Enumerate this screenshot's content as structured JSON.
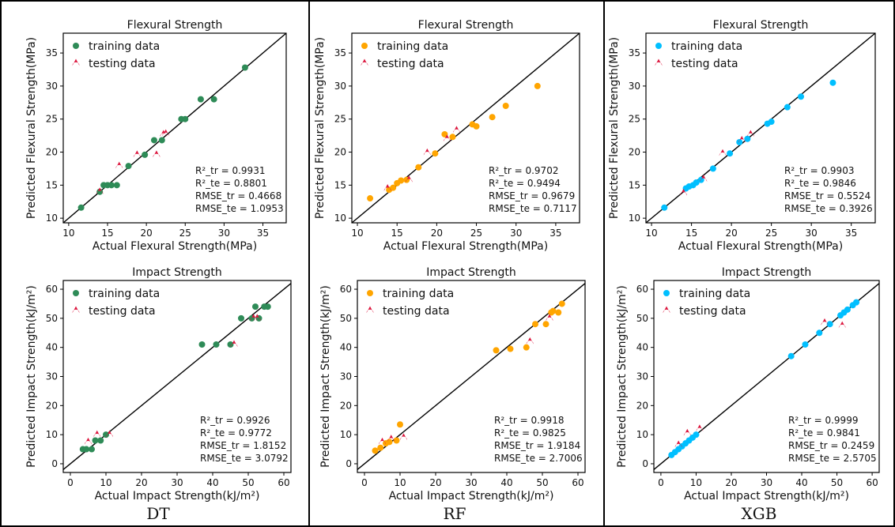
{
  "models": [
    "DT",
    "RF",
    "XGB"
  ],
  "colors": {
    "testing": "#dc143c",
    "DT": "#2e8b57",
    "RF": "#ffa500",
    "XGB": "#00bfff"
  },
  "legend": {
    "training": "training data",
    "testing": "testing data"
  },
  "chart_data": [
    {
      "type": "scatter",
      "model": "DT",
      "metric": "flexural",
      "title": "Flexural Strength",
      "xlabel": "Actual Flexural Strength(MPa)",
      "ylabel": "Predicted Flexural Strength(MPa)",
      "xlim": [
        9.3,
        38
      ],
      "ylim": [
        9.3,
        38
      ],
      "xticks": [
        10,
        15,
        20,
        25,
        30,
        35
      ],
      "yticks": [
        10,
        15,
        20,
        25,
        30,
        35
      ],
      "annotations": [
        "R²_tr = 0.9931",
        "R²_te = 0.8801",
        "RMSE_tr = 0.4668",
        "RMSE_te = 1.0953"
      ],
      "series": [
        {
          "name": "training data",
          "role": "training",
          "points": [
            [
              11.6,
              11.6
            ],
            [
              14.0,
              14.0
            ],
            [
              14.5,
              15.0
            ],
            [
              15.0,
              15.0
            ],
            [
              15.5,
              15.0
            ],
            [
              16.2,
              15.0
            ],
            [
              17.7,
              17.9
            ],
            [
              19.8,
              19.6
            ],
            [
              21.0,
              21.8
            ],
            [
              22.0,
              21.8
            ],
            [
              24.5,
              25.0
            ],
            [
              25.0,
              25.0
            ],
            [
              27.0,
              28.0
            ],
            [
              28.7,
              28.0
            ],
            [
              32.7,
              32.8
            ]
          ]
        },
        {
          "name": "testing data",
          "role": "testing",
          "points": [
            [
              14.0,
              14.0
            ],
            [
              16.5,
              17.9
            ],
            [
              18.8,
              19.6
            ],
            [
              21.3,
              19.6
            ],
            [
              22.2,
              22.7
            ],
            [
              22.5,
              22.8
            ]
          ]
        }
      ]
    },
    {
      "type": "scatter",
      "model": "RF",
      "metric": "flexural",
      "title": "Flexural Strength",
      "xlabel": "Actual Flexural Strength(MPa)",
      "ylabel": "Predicted Flexural Strength(MPa)",
      "xlim": [
        9.3,
        38
      ],
      "ylim": [
        9.3,
        38
      ],
      "xticks": [
        10,
        15,
        20,
        25,
        30,
        35
      ],
      "yticks": [
        10,
        15,
        20,
        25,
        30,
        35
      ],
      "annotations": [
        "R²_tr = 0.9702",
        "R²_te = 0.9494",
        "RMSE_tr = 0.9679",
        "RMSE_te = 0.7117"
      ],
      "series": [
        {
          "name": "training data",
          "role": "training",
          "points": [
            [
              11.6,
              13.0
            ],
            [
              14.0,
              14.3
            ],
            [
              14.5,
              14.6
            ],
            [
              15.0,
              15.3
            ],
            [
              15.5,
              15.7
            ],
            [
              16.2,
              15.8
            ],
            [
              17.7,
              17.7
            ],
            [
              19.8,
              19.8
            ],
            [
              21.0,
              22.7
            ],
            [
              22.0,
              22.3
            ],
            [
              24.5,
              24.2
            ],
            [
              25.0,
              23.9
            ],
            [
              27.0,
              25.3
            ],
            [
              28.7,
              27.0
            ],
            [
              32.7,
              30.0
            ]
          ]
        },
        {
          "name": "testing data",
          "role": "testing",
          "points": [
            [
              13.8,
              14.5
            ],
            [
              16.5,
              15.8
            ],
            [
              18.8,
              19.9
            ],
            [
              21.3,
              22.0
            ],
            [
              22.5,
              23.3
            ]
          ]
        }
      ]
    },
    {
      "type": "scatter",
      "model": "XGB",
      "metric": "flexural",
      "title": "Flexural Strength",
      "xlabel": "Actual Flexural Strength(MPa)",
      "ylabel": "Predicted Flexural Strength(MPa)",
      "xlim": [
        9.3,
        38
      ],
      "ylim": [
        9.3,
        38
      ],
      "xticks": [
        10,
        15,
        20,
        25,
        30,
        35
      ],
      "yticks": [
        10,
        15,
        20,
        25,
        30,
        35
      ],
      "annotations": [
        "R²_tr = 0.9903",
        "R²_te = 0.9846",
        "RMSE_tr = 0.5524",
        "RMSE_te = 0.3926"
      ],
      "series": [
        {
          "name": "training data",
          "role": "training",
          "points": [
            [
              11.6,
              11.6
            ],
            [
              14.3,
              14.5
            ],
            [
              14.7,
              14.8
            ],
            [
              15.2,
              15.0
            ],
            [
              15.6,
              15.4
            ],
            [
              16.2,
              15.8
            ],
            [
              17.7,
              17.5
            ],
            [
              19.8,
              19.8
            ],
            [
              21.0,
              21.5
            ],
            [
              22.0,
              22.0
            ],
            [
              24.5,
              24.3
            ],
            [
              25.0,
              24.6
            ],
            [
              27.0,
              26.8
            ],
            [
              28.7,
              28.4
            ],
            [
              32.7,
              30.5
            ]
          ]
        },
        {
          "name": "testing data",
          "role": "testing",
          "points": [
            [
              14.0,
              13.8
            ],
            [
              16.5,
              15.9
            ],
            [
              18.9,
              19.8
            ],
            [
              21.3,
              21.8
            ],
            [
              22.4,
              22.7
            ]
          ]
        }
      ]
    },
    {
      "type": "scatter",
      "model": "DT",
      "metric": "impact",
      "title": "Impact Strength",
      "xlabel": "Actual Impact Strength(kJ/m²)",
      "ylabel": "Predicted Impact Strength(kJ/m²)",
      "xlim": [
        -2,
        62
      ],
      "ylim": [
        -3,
        63
      ],
      "xticks": [
        0,
        10,
        20,
        30,
        40,
        50,
        60
      ],
      "yticks": [
        0,
        10,
        20,
        30,
        40,
        50,
        60
      ],
      "annotations": [
        "R²_tr = 0.9926",
        "R²_te = 0.9772",
        "RMSE_tr = 1.8152",
        "RMSE_te = 3.0792"
      ],
      "series": [
        {
          "name": "training data",
          "role": "training",
          "points": [
            [
              3.5,
              5.0
            ],
            [
              4.5,
              5.0
            ],
            [
              6.0,
              5.0
            ],
            [
              7.0,
              8.0
            ],
            [
              8.5,
              8.0
            ],
            [
              10.0,
              10.0
            ],
            [
              37.0,
              41.0
            ],
            [
              41.0,
              41.0
            ],
            [
              45.0,
              41.0
            ],
            [
              48.0,
              50.0
            ],
            [
              51.0,
              50.0
            ],
            [
              52.0,
              54.0
            ],
            [
              53.0,
              50.0
            ],
            [
              54.5,
              54.0
            ],
            [
              55.5,
              54.0
            ]
          ]
        },
        {
          "name": "testing data",
          "role": "testing",
          "points": [
            [
              5.0,
              7.5
            ],
            [
              7.5,
              10.0
            ],
            [
              11.0,
              10.0
            ],
            [
              46.0,
              41.0
            ],
            [
              51.5,
              50.0
            ],
            [
              52.5,
              50.0
            ]
          ]
        }
      ]
    },
    {
      "type": "scatter",
      "model": "RF",
      "metric": "impact",
      "title": "Impact Strength",
      "xlabel": "Actual Impact Strength(kJ/m²)",
      "ylabel": "Predicted Impact Strength(kJ/m²)",
      "xlim": [
        -2,
        62
      ],
      "ylim": [
        -3,
        63
      ],
      "xticks": [
        0,
        10,
        20,
        30,
        40,
        50,
        60
      ],
      "yticks": [
        0,
        10,
        20,
        30,
        40,
        50,
        60
      ],
      "annotations": [
        "R²_tr = 0.9918",
        "R²_te = 0.9825",
        "RMSE_tr = 1.9184",
        "RMSE_te = 2.7006"
      ],
      "series": [
        {
          "name": "training data",
          "role": "training",
          "points": [
            [
              3.0,
              4.5
            ],
            [
              4.5,
              5.5
            ],
            [
              6.0,
              7.0
            ],
            [
              7.0,
              7.5
            ],
            [
              9.0,
              8.0
            ],
            [
              10.0,
              13.5
            ],
            [
              37.0,
              39.0
            ],
            [
              41.0,
              39.5
            ],
            [
              45.5,
              40.0
            ],
            [
              48.0,
              48.0
            ],
            [
              51.0,
              48.0
            ],
            [
              52.5,
              52.0
            ],
            [
              53.0,
              52.5
            ],
            [
              54.5,
              52.0
            ],
            [
              55.5,
              55.0
            ]
          ]
        },
        {
          "name": "testing data",
          "role": "testing",
          "points": [
            [
              5.0,
              7.5
            ],
            [
              7.5,
              8.5
            ],
            [
              11.0,
              9.0
            ],
            [
              46.5,
              42.0
            ],
            [
              52.0,
              50.0
            ]
          ]
        }
      ]
    },
    {
      "type": "scatter",
      "model": "XGB",
      "metric": "impact",
      "title": "Impact Strength",
      "xlabel": "Actual Impact Strength(kJ/m²)",
      "ylabel": "Predicted Impact Strength(kJ/m²)",
      "xlim": [
        -2,
        62
      ],
      "ylim": [
        -3,
        63
      ],
      "xticks": [
        0,
        10,
        20,
        30,
        40,
        50,
        60
      ],
      "yticks": [
        0,
        10,
        20,
        30,
        40,
        50,
        60
      ],
      "annotations": [
        "R²_tr = 0.9999",
        "R²_te = 0.9841",
        "RMSE_tr = 0.2459",
        "RMSE_te = 2.5705"
      ],
      "series": [
        {
          "name": "training data",
          "role": "training",
          "points": [
            [
              3.0,
              3.0
            ],
            [
              4.0,
              4.0
            ],
            [
              5.0,
              5.0
            ],
            [
              6.0,
              6.0
            ],
            [
              7.0,
              7.0
            ],
            [
              8.0,
              8.0
            ],
            [
              9.0,
              9.0
            ],
            [
              10.0,
              10.0
            ],
            [
              37.0,
              37.0
            ],
            [
              41.0,
              41.0
            ],
            [
              45.0,
              45.0
            ],
            [
              48.0,
              48.0
            ],
            [
              51.0,
              51.0
            ],
            [
              52.0,
              52.0
            ],
            [
              53.0,
              53.0
            ],
            [
              54.5,
              54.5
            ],
            [
              55.5,
              55.5
            ]
          ]
        },
        {
          "name": "testing data",
          "role": "testing",
          "points": [
            [
              5.0,
              6.5
            ],
            [
              7.5,
              10.5
            ],
            [
              11.0,
              12.0
            ],
            [
              46.5,
              48.5
            ],
            [
              51.5,
              47.5
            ]
          ]
        }
      ]
    }
  ]
}
